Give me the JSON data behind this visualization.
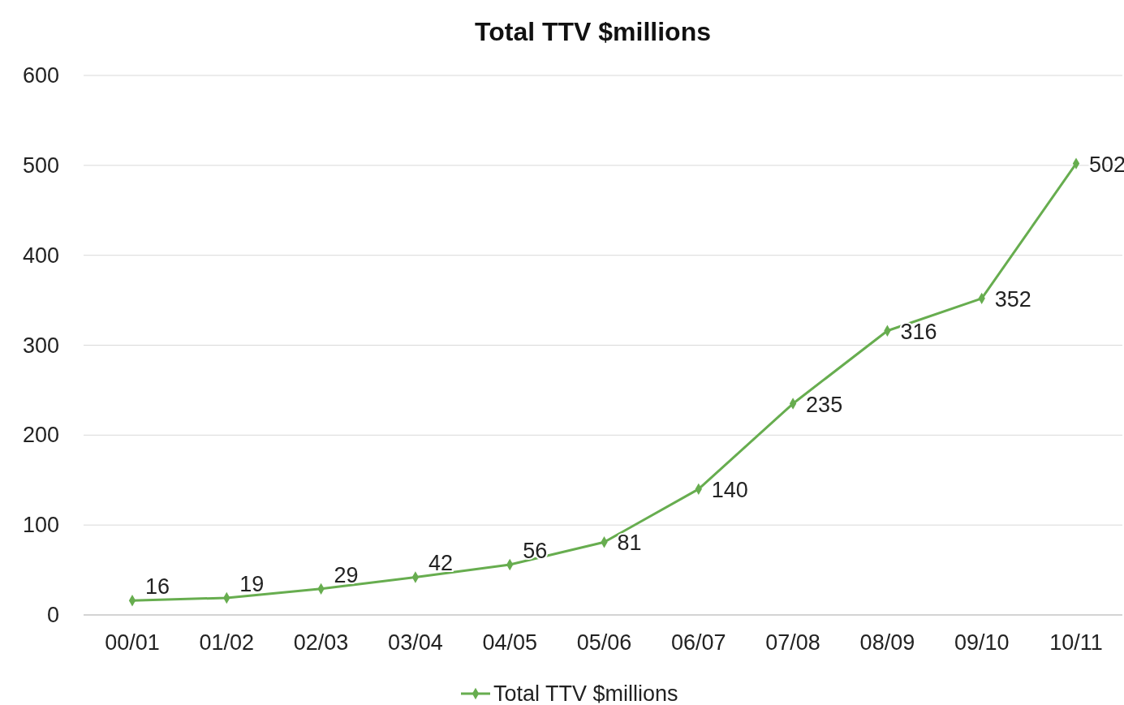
{
  "chart_data": {
    "type": "line",
    "title": "Total TTV $millions",
    "categories": [
      "00/01",
      "01/02",
      "02/03",
      "03/04",
      "04/05",
      "05/06",
      "06/07",
      "07/08",
      "08/09",
      "09/10",
      "10/11"
    ],
    "series": [
      {
        "name": "Total TTV $millions",
        "color": "#67ad4f",
        "values": [
          16,
          19,
          29,
          42,
          56,
          81,
          140,
          235,
          316,
          352,
          502
        ]
      }
    ],
    "ylim": [
      0,
      600
    ],
    "yticks": [
      0,
      100,
      200,
      300,
      400,
      500,
      600
    ],
    "grid": "y",
    "legend": "bottom",
    "marker": "diamond",
    "line_style": "solid",
    "data_labels": true
  }
}
